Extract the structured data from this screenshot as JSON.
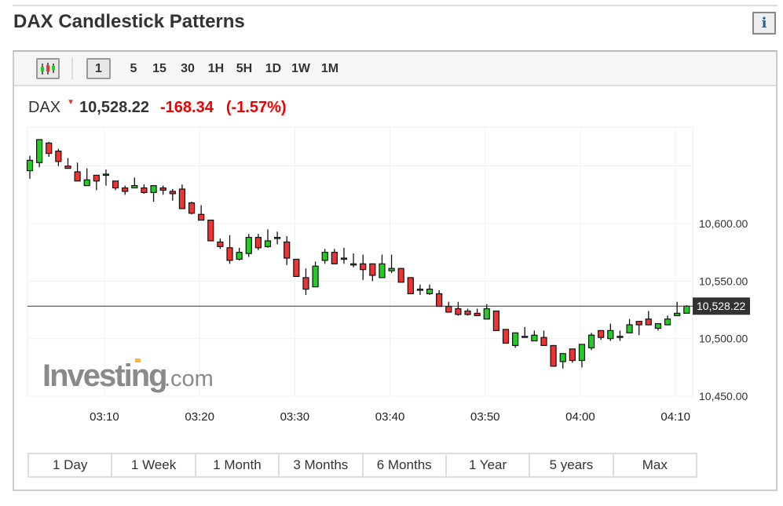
{
  "page": {
    "title": "DAX Candlestick Patterns",
    "info_icon": "info-icon"
  },
  "toolbar": {
    "chart_type_icon": "candlestick-icon",
    "intervals": [
      "1",
      "5",
      "15",
      "30",
      "1H",
      "5H",
      "1D",
      "1W",
      "1M"
    ],
    "active_interval": "1"
  },
  "quote": {
    "symbol": "DAX",
    "direction_icon": "down-arrow-icon",
    "last": "10,528.22",
    "change": "-168.34",
    "change_pct": "(-1.57%)"
  },
  "colors": {
    "up": "#22cc22",
    "down": "#ee3333",
    "negative_text": "#e00000",
    "last_price_label_bg": "#333333"
  },
  "watermark": {
    "brand": "Investing",
    "suffix": ".com"
  },
  "chart_data": {
    "type": "candlestick",
    "y_ticks": [
      "10,600.00",
      "10,550.00",
      "10,500.00",
      "10,450.00"
    ],
    "y_tick_values": [
      10600,
      10550,
      10500,
      10450
    ],
    "ylim": [
      10450,
      10684
    ],
    "x_ticks": [
      "03:10",
      "03:20",
      "03:30",
      "03:40",
      "03:50",
      "04:00",
      "04:10"
    ],
    "x_start": "03:02",
    "x_interval_minutes": 1,
    "last_price_label": "10,528.22",
    "last_price": 10528.22,
    "grid": true,
    "ohlc": [
      [
        10646,
        10659,
        10639,
        10655
      ],
      [
        10653,
        10673,
        10649,
        10673
      ],
      [
        10670,
        10671,
        10658,
        10661
      ],
      [
        10663,
        10665,
        10650,
        10654
      ],
      [
        10650,
        10657,
        10648,
        10648
      ],
      [
        10645,
        10653,
        10637,
        10637
      ],
      [
        10633,
        10648,
        10633,
        10638
      ],
      [
        10642,
        10642,
        10629,
        10637
      ],
      [
        10643,
        10647,
        10633,
        10643
      ],
      [
        10637,
        10637,
        10629,
        10631
      ],
      [
        10631,
        10633,
        10625,
        10628
      ],
      [
        10631,
        10640,
        10631,
        10633
      ],
      [
        10631,
        10634,
        10626,
        10627
      ],
      [
        10627,
        10633,
        10619,
        10633
      ],
      [
        10631,
        10633,
        10625,
        10629
      ],
      [
        10628,
        10630,
        10620,
        10626
      ],
      [
        10630,
        10634,
        10613,
        10613
      ],
      [
        10618,
        10619,
        10608,
        10609
      ],
      [
        10608,
        10616,
        10603,
        10603
      ],
      [
        10603,
        10603,
        10585,
        10585
      ],
      [
        10584,
        10587,
        10578,
        10580
      ],
      [
        10579,
        10590,
        10565,
        10568
      ],
      [
        10569,
        10579,
        10568,
        10575
      ],
      [
        10574,
        10591,
        10571,
        10588
      ],
      [
        10588,
        10591,
        10577,
        10579
      ],
      [
        10580,
        10595,
        10579,
        10585
      ],
      [
        10588,
        10593,
        10582,
        10588
      ],
      [
        10584,
        10589,
        10564,
        10570
      ],
      [
        10569,
        10569,
        10554,
        10554
      ],
      [
        10553,
        10561,
        10538,
        10543
      ],
      [
        10545,
        10567,
        10545,
        10563
      ],
      [
        10568,
        10578,
        10565,
        10575
      ],
      [
        10575,
        10578,
        10565,
        10565
      ],
      [
        10570,
        10579,
        10565,
        10570
      ],
      [
        10565,
        10574,
        10562,
        10565
      ],
      [
        10565,
        10573,
        10551,
        10560
      ],
      [
        10565,
        10565,
        10550,
        10555
      ],
      [
        10553,
        10573,
        10553,
        10565
      ],
      [
        10559,
        10573,
        10557,
        10561
      ],
      [
        10561,
        10561,
        10549,
        10549
      ],
      [
        10553,
        10553,
        10539,
        10539
      ],
      [
        10543,
        10547,
        10538,
        10543
      ],
      [
        10539,
        10547,
        10538,
        10543
      ],
      [
        10539,
        10542,
        10528,
        10528
      ],
      [
        10528,
        10532,
        10523,
        10523
      ],
      [
        10526,
        10532,
        10520,
        10521
      ],
      [
        10524,
        10526,
        10520,
        10521
      ],
      [
        10522,
        10526,
        10520,
        10520
      ],
      [
        10517,
        10530,
        10517,
        10526
      ],
      [
        10524,
        10524,
        10507,
        10507
      ],
      [
        10508,
        10508,
        10496,
        10496
      ],
      [
        10494,
        10505,
        10492,
        10505
      ],
      [
        10502,
        10510,
        10502,
        10502
      ],
      [
        10498,
        10507,
        10498,
        10503
      ],
      [
        10501,
        10507,
        10494,
        10494
      ],
      [
        10494,
        10494,
        10476,
        10476
      ],
      [
        10480,
        10487,
        10474,
        10487
      ],
      [
        10491,
        10491,
        10479,
        10481
      ],
      [
        10481,
        10495,
        10475,
        10495
      ],
      [
        10492,
        10505,
        10490,
        10503
      ],
      [
        10507,
        10507,
        10499,
        10501
      ],
      [
        10500,
        10513,
        10498,
        10507
      ],
      [
        10502,
        10507,
        10498,
        10502
      ],
      [
        10505,
        10517,
        10505,
        10512
      ],
      [
        10515,
        10515,
        10503,
        10512
      ],
      [
        10517,
        10524,
        10512,
        10512
      ],
      [
        10509,
        10513,
        10507,
        10513
      ],
      [
        10512,
        10520,
        10512,
        10517
      ],
      [
        10520,
        10532,
        10520,
        10522
      ],
      [
        10522,
        10529,
        10522,
        10528.22
      ]
    ]
  },
  "ranges": [
    "1 Day",
    "1 Week",
    "1 Month",
    "3 Months",
    "6 Months",
    "1 Year",
    "5 years",
    "Max"
  ]
}
